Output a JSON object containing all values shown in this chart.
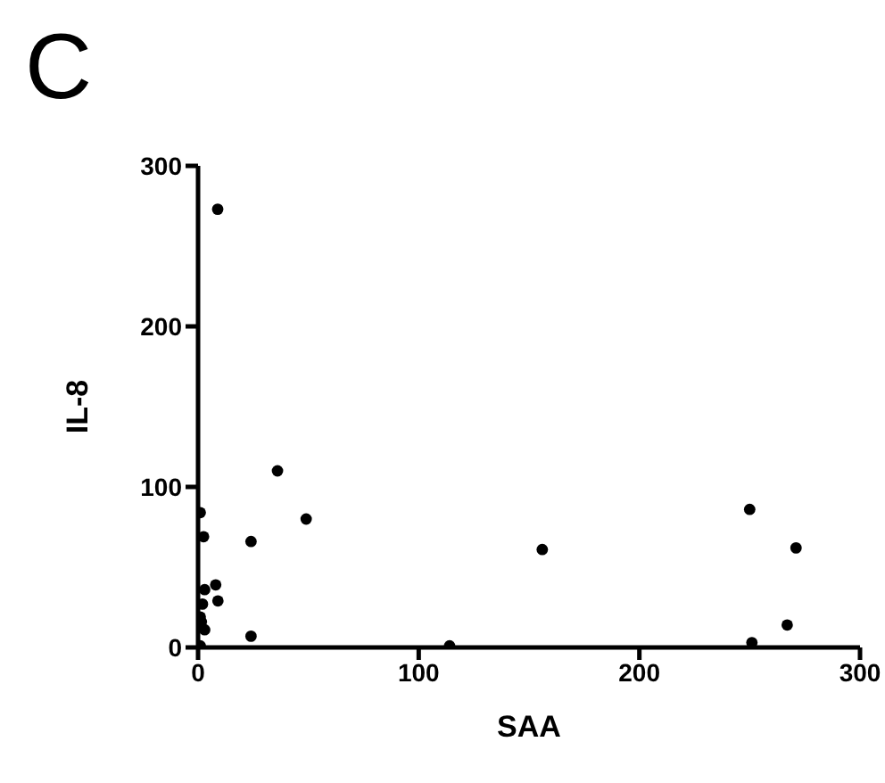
{
  "chart_data": {
    "type": "scatter",
    "title": "C",
    "xlabel": "SAA",
    "ylabel": "IL-8",
    "x": [
      8.9,
      36,
      49,
      24,
      1,
      2.5,
      8,
      9,
      3,
      2,
      1,
      1.5,
      3,
      1,
      24,
      156,
      250,
      271,
      267,
      251,
      114
    ],
    "series": [
      {
        "color": "#000000",
        "values": [
          273,
          110,
          80,
          66,
          84,
          69,
          39,
          29,
          36,
          27,
          19,
          16,
          11,
          1,
          7,
          61,
          86,
          62,
          14,
          3,
          1
        ]
      }
    ],
    "xlim": [
      0,
      300
    ],
    "xticks": [
      0,
      100,
      200,
      300
    ],
    "ylim": [
      0,
      300
    ],
    "yticks": [
      0,
      100,
      200,
      300
    ],
    "grid": false,
    "legend": false,
    "marker": "circle"
  }
}
